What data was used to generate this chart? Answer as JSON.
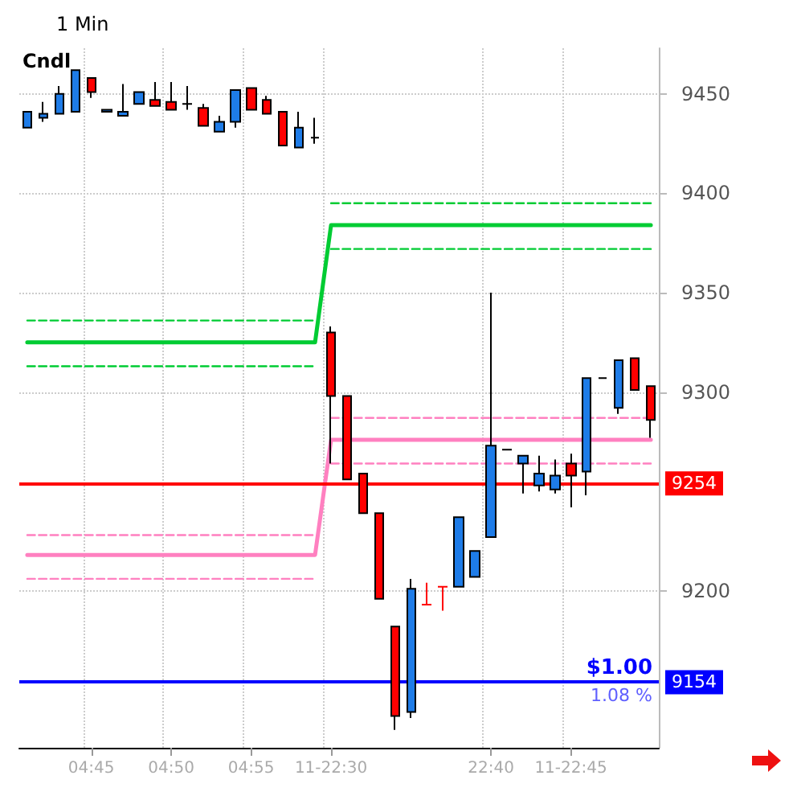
{
  "chart_data": {
    "type": "candlestick",
    "title": "1 Min",
    "categories": [
      null,
      null,
      null,
      null,
      "04:45",
      null,
      null,
      null,
      null,
      "04:50",
      null,
      null,
      null,
      null,
      "04:55",
      null,
      null,
      null,
      null,
      "11-22:30",
      null,
      null,
      null,
      null,
      null,
      null,
      null,
      null,
      null,
      "22:40",
      null,
      null,
      null,
      null,
      "11-22:45",
      null,
      null,
      null,
      null,
      null
    ],
    "ohlc": [
      [
        9433,
        9441,
        9433,
        9441
      ],
      [
        9438,
        9446,
        9436,
        9440
      ],
      [
        9440,
        9454,
        9440,
        9450
      ],
      [
        9441,
        9462,
        9441,
        9462
      ],
      [
        9458,
        9458,
        9448,
        9451
      ],
      [
        9441,
        9442,
        9441,
        9442
      ],
      [
        9439,
        9455,
        9439,
        9441
      ],
      [
        9445,
        9451,
        9445,
        9451
      ],
      [
        9447,
        9456,
        9444,
        9444
      ],
      [
        9446,
        9456,
        9442,
        9442
      ],
      [
        9445,
        9454,
        9442,
        9445
      ],
      [
        9443,
        9445,
        9434,
        9434
      ],
      [
        9431,
        9439,
        9431,
        9436
      ],
      [
        9436,
        9452,
        9433,
        9452
      ],
      [
        9453,
        9453,
        9442,
        9442
      ],
      [
        9447,
        9449,
        9440,
        9440
      ],
      [
        9441,
        9441,
        9424,
        9424
      ],
      [
        9423,
        9441,
        9423,
        9433
      ],
      [
        9428,
        9438,
        9425,
        9428
      ],
      [
        9330,
        9333,
        9264,
        9298
      ],
      [
        9298,
        9298,
        9256,
        9256
      ],
      [
        9259,
        9259,
        9239,
        9239
      ],
      [
        9239,
        9239,
        9196,
        9196
      ],
      [
        9182,
        9182,
        9130,
        9137
      ],
      [
        9139,
        9206,
        9136,
        9201
      ],
      [
        9193,
        9204,
        9193,
        9193
      ],
      [
        9202,
        9202,
        9190,
        9202
      ],
      [
        9202,
        9237,
        9202,
        9237
      ],
      [
        9207,
        9220,
        9207,
        9220
      ],
      [
        9227,
        9350,
        9227,
        9273
      ],
      [
        9271,
        9271,
        9271,
        9271
      ],
      [
        9264,
        9268,
        9249,
        9268
      ],
      [
        9253,
        9268,
        9250,
        9259
      ],
      [
        9251,
        9266,
        9249,
        9258
      ],
      [
        9264,
        9269,
        9242,
        9258
      ],
      [
        9260,
        9307,
        9248,
        9307
      ],
      [
        9307,
        9307,
        9307,
        9307
      ],
      [
        9292,
        9316,
        9289,
        9316
      ],
      [
        9317,
        9317,
        9301,
        9301
      ],
      [
        9303,
        9303,
        9277,
        9286
      ]
    ],
    "colors": [
      "#1e7ce8",
      "#1e7ce8",
      "#1e7ce8",
      "#1e7ce8",
      "#ff0000",
      "#1e7ce8",
      "#1e7ce8",
      "#1e7ce8",
      "#ff0000",
      "#ff0000",
      "#000000",
      "#ff0000",
      "#1e7ce8",
      "#1e7ce8",
      "#ff0000",
      "#ff0000",
      "#ff0000",
      "#1e7ce8",
      "#000000",
      "#ff0000",
      "#ff0000",
      "#ff0000",
      "#ff0000",
      "#ff0000",
      "#1e7ce8",
      "#ff0000",
      "#ff0000",
      "#1e7ce8",
      "#1e7ce8",
      "#1e7ce8",
      "#000000",
      "#1e7ce8",
      "#1e7ce8",
      "#1e7ce8",
      "#ff0000",
      "#1e7ce8",
      "#000000",
      "#1e7ce8",
      "#ff0000",
      "#ff0000"
    ],
    "series": [
      {
        "type": "line",
        "color": "#00cc33",
        "line_style": "solid",
        "values": [
          9325,
          9325,
          9325,
          9325,
          9325,
          9325,
          9325,
          9325,
          9325,
          9325,
          9325,
          9325,
          9325,
          9325,
          9325,
          9325,
          9325,
          9325,
          9325,
          9384,
          9384,
          9384,
          9384,
          9384,
          9384,
          9384,
          9384,
          9384,
          9384,
          9384,
          9384,
          9384,
          9384,
          9384,
          9384,
          9384,
          9384,
          9384,
          9384,
          9384
        ]
      },
      {
        "type": "line",
        "color": "#00cc33",
        "line_style": "dashed",
        "values": [
          9336,
          9336,
          9336,
          9336,
          9336,
          9336,
          9336,
          9336,
          9336,
          9336,
          9336,
          9336,
          9336,
          9336,
          9336,
          9336,
          9336,
          9336,
          9336,
          null,
          null,
          null,
          null,
          null,
          null,
          null,
          null,
          null,
          null,
          null,
          null,
          null,
          null,
          null,
          null,
          null,
          null,
          null,
          null,
          null
        ]
      },
      {
        "type": "line",
        "color": "#00cc33",
        "line_style": "dashed",
        "values": [
          9313,
          9313,
          9313,
          9313,
          9313,
          9313,
          9313,
          9313,
          9313,
          9313,
          9313,
          9313,
          9313,
          9313,
          9313,
          9313,
          9313,
          9313,
          9313,
          null,
          null,
          null,
          null,
          null,
          null,
          null,
          null,
          null,
          null,
          null,
          null,
          null,
          null,
          null,
          null,
          null,
          null,
          null,
          null,
          null
        ]
      },
      {
        "type": "line",
        "color": "#00cc33",
        "line_style": "dashed",
        "values": [
          null,
          null,
          null,
          null,
          null,
          null,
          null,
          null,
          null,
          null,
          null,
          null,
          null,
          null,
          null,
          null,
          null,
          null,
          null,
          9395,
          9395,
          9395,
          9395,
          9395,
          9395,
          9395,
          9395,
          9395,
          9395,
          9395,
          9395,
          9395,
          9395,
          9395,
          9395,
          9395,
          9395,
          9395,
          9395,
          9395
        ]
      },
      {
        "type": "line",
        "color": "#00cc33",
        "line_style": "dashed",
        "values": [
          null,
          null,
          null,
          null,
          null,
          null,
          null,
          null,
          null,
          null,
          null,
          null,
          null,
          null,
          null,
          null,
          null,
          null,
          null,
          9372,
          9372,
          9372,
          9372,
          9372,
          9372,
          9372,
          9372,
          9372,
          9372,
          9372,
          9372,
          9372,
          9372,
          9372,
          9372,
          9372,
          9372,
          9372,
          9372,
          9372
        ]
      },
      {
        "type": "line",
        "color": "#ff80c0",
        "line_style": "solid",
        "values": [
          9218,
          9218,
          9218,
          9218,
          9218,
          9218,
          9218,
          9218,
          9218,
          9218,
          9218,
          9218,
          9218,
          9218,
          9218,
          9218,
          9218,
          9218,
          9218,
          9276,
          9276,
          9276,
          9276,
          9276,
          9276,
          9276,
          9276,
          9276,
          9276,
          9276,
          9276,
          9276,
          9276,
          9276,
          9276,
          9276,
          9276,
          9276,
          9276,
          9276
        ]
      },
      {
        "type": "line",
        "color": "#ff80c0",
        "line_style": "dashed",
        "values": [
          9228,
          9228,
          9228,
          9228,
          9228,
          9228,
          9228,
          9228,
          9228,
          9228,
          9228,
          9228,
          9228,
          9228,
          9228,
          9228,
          9228,
          9228,
          9228,
          null,
          null,
          null,
          null,
          null,
          null,
          null,
          null,
          null,
          null,
          null,
          null,
          null,
          null,
          null,
          null,
          null,
          null,
          null,
          null,
          null
        ]
      },
      {
        "type": "line",
        "color": "#ff80c0",
        "line_style": "dashed",
        "values": [
          9206,
          9206,
          9206,
          9206,
          9206,
          9206,
          9206,
          9206,
          9206,
          9206,
          9206,
          9206,
          9206,
          9206,
          9206,
          9206,
          9206,
          9206,
          9206,
          null,
          null,
          null,
          null,
          null,
          null,
          null,
          null,
          null,
          null,
          null,
          null,
          null,
          null,
          null,
          null,
          null,
          null,
          null,
          null,
          null
        ]
      },
      {
        "type": "line",
        "color": "#ff80c0",
        "line_style": "dashed",
        "values": [
          null,
          null,
          null,
          null,
          null,
          null,
          null,
          null,
          null,
          null,
          null,
          null,
          null,
          null,
          null,
          null,
          null,
          null,
          null,
          9287,
          9287,
          9287,
          9287,
          9287,
          9287,
          9287,
          9287,
          9287,
          9287,
          9287,
          9287,
          9287,
          9287,
          9287,
          9287,
          9287,
          9287,
          9287,
          9287,
          9287
        ]
      },
      {
        "type": "line",
        "color": "#ff80c0",
        "line_style": "dashed",
        "values": [
          null,
          null,
          null,
          null,
          null,
          null,
          null,
          null,
          null,
          null,
          null,
          null,
          null,
          null,
          null,
          null,
          null,
          null,
          null,
          9264,
          9264,
          9264,
          9264,
          9264,
          9264,
          9264,
          9264,
          9264,
          9264,
          9264,
          9264,
          9264,
          9264,
          9264,
          9264,
          9264,
          9264,
          9264,
          9264,
          9264
        ]
      }
    ],
    "ref_lines": [
      {
        "axis": "y",
        "value": 9254,
        "label": "9254",
        "color": "#ff0000"
      },
      {
        "axis": "y",
        "value": 9154,
        "label": "9154",
        "color": "#0000ff"
      }
    ],
    "annotations": [
      "Cndl",
      {
        "text": "$1.00",
        "y": 9154
      },
      {
        "text": "1.08 %",
        "y": 9154
      }
    ],
    "ylim": [
      9121,
      9473
    ],
    "yticks": [
      9200,
      9300,
      9350,
      9400,
      9450
    ],
    "grid": true
  }
}
